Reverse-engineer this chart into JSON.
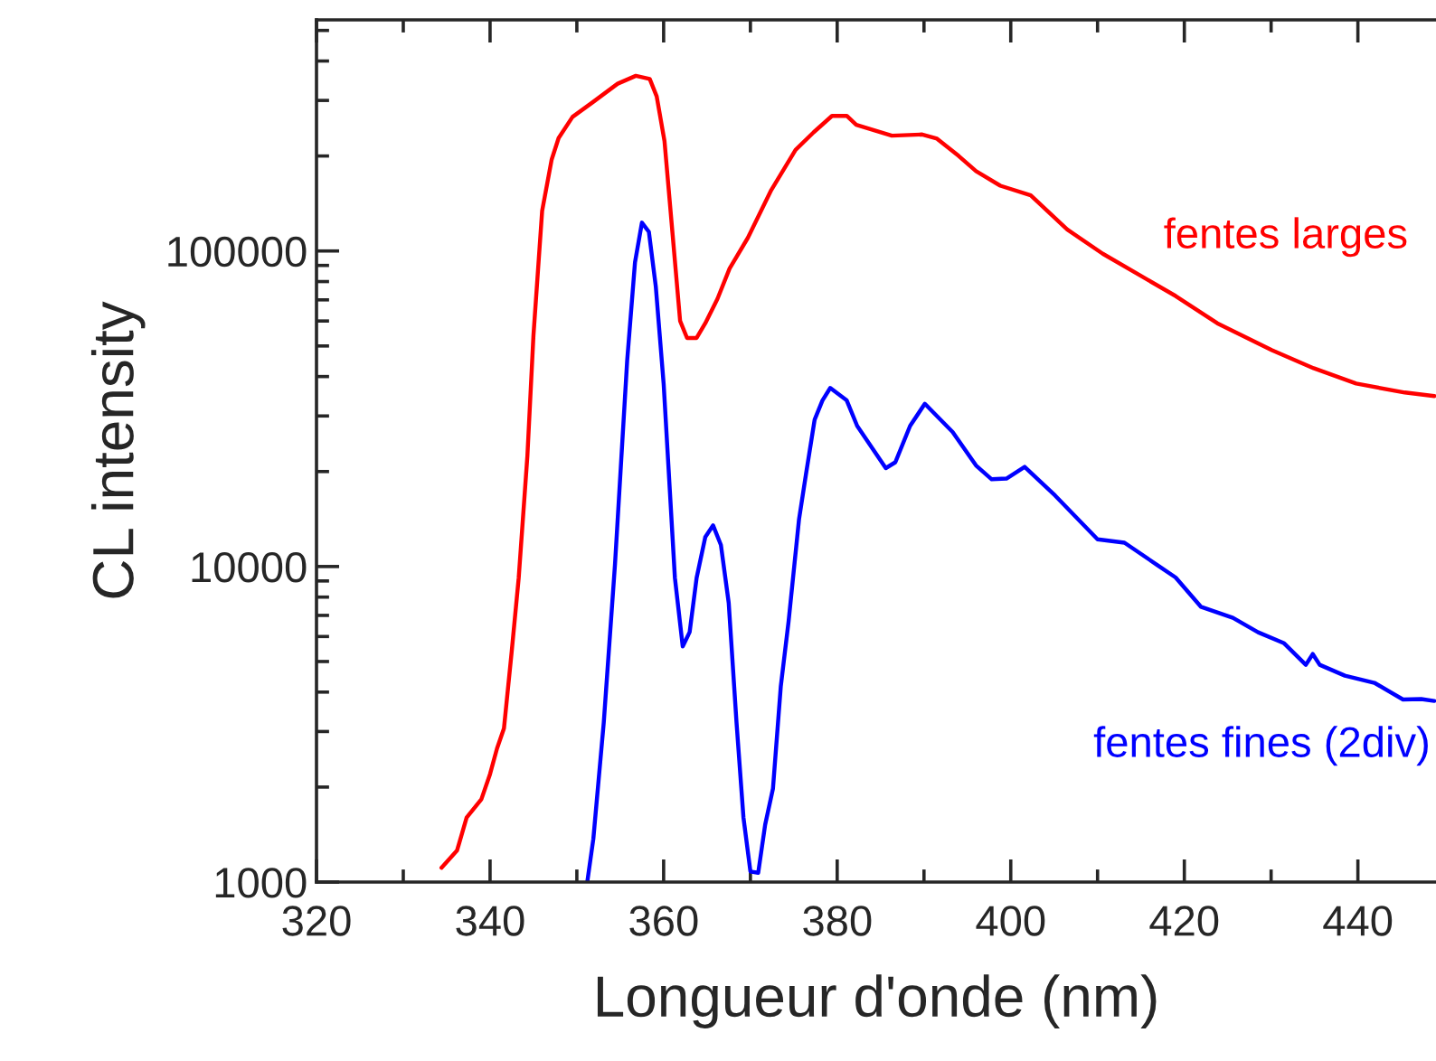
{
  "chart_data": {
    "type": "line",
    "xlabel": "Longueur d'onde (nm)",
    "ylabel": "CL intensity",
    "log": "y",
    "grid": false,
    "legend": false,
    "marker": "none",
    "line_style": "solid",
    "xlim": [
      320,
      449
    ],
    "ylim": [
      1000,
      540000
    ],
    "xticks": [
      320,
      340,
      360,
      380,
      400,
      420,
      440
    ],
    "yticks": [
      1000,
      10000,
      100000
    ],
    "series": [
      {
        "name": "fentes larges",
        "color": "#ff0000",
        "x": [
          334.4,
          336.2,
          337.3,
          339,
          340,
          340.8,
          341.6,
          342.5,
          343.3,
          344.3,
          345,
          346,
          347.1,
          347.9,
          349.5,
          351.9,
          354.7,
          356.8,
          358.4,
          359.2,
          360.1,
          361.9,
          362.7,
          363.8,
          364.8,
          366.2,
          367.6,
          369.7,
          372.4,
          375.2,
          377.3,
          379.4,
          381.1,
          382.2,
          386.3,
          389.8,
          391.5,
          394,
          396,
          398.8,
          402.3,
          406.5,
          410.6,
          414.8,
          419,
          423.8,
          430.1,
          434.9,
          439.8,
          445.4,
          448.8
        ],
        "values": [
          1110,
          1260,
          1600,
          1830,
          2200,
          2650,
          3070,
          5400,
          9200,
          22400,
          54000,
          134000,
          195000,
          228000,
          266000,
          297000,
          339000,
          359000,
          351000,
          309000,
          223000,
          60000,
          53000,
          53000,
          59000,
          70500,
          88000,
          110000,
          156000,
          209000,
          238000,
          268000,
          268000,
          251000,
          232000,
          234000,
          227000,
          200000,
          179000,
          161000,
          150000,
          117000,
          98000,
          84000,
          72000,
          59000,
          48500,
          42500,
          38000,
          35600,
          34700
        ]
      },
      {
        "name": "fentes fines (2div)",
        "color": "#0000ff",
        "x": [
          351.2,
          351.9,
          353.1,
          354.4,
          355.8,
          356.7,
          357.5,
          358.3,
          359.1,
          360,
          361.3,
          362.2,
          363,
          363.8,
          364.8,
          365.7,
          366.6,
          367.5,
          368.4,
          369.2,
          370,
          370.9,
          371.7,
          372.6,
          373.5,
          374.4,
          375.6,
          376.4,
          377.4,
          378.3,
          379.2,
          381.1,
          382.3,
          385.6,
          386.7,
          388.4,
          390.1,
          393.3,
          396,
          397.8,
          399.5,
          401.6,
          405.1,
          410,
          413.1,
          416.9,
          419,
          421.9,
          425.6,
          428.5,
          431.5,
          434,
          434.8,
          435.6,
          438.5,
          441.9,
          445.2,
          447.3,
          448.8
        ],
        "values": [
          1000,
          1370,
          3200,
          10200,
          45000,
          92000,
          123000,
          115000,
          77000,
          38000,
          9200,
          5580,
          6200,
          9200,
          12400,
          13500,
          11700,
          7670,
          3200,
          1600,
          1080,
          1070,
          1520,
          1980,
          4170,
          6700,
          14100,
          19600,
          29200,
          33600,
          36800,
          33600,
          27900,
          20500,
          21400,
          27900,
          32800,
          26700,
          20900,
          18900,
          19000,
          20700,
          16800,
          12200,
          11900,
          10100,
          9230,
          7460,
          6880,
          6190,
          5710,
          4880,
          5280,
          4880,
          4510,
          4280,
          3790,
          3800,
          3750
        ]
      }
    ]
  }
}
